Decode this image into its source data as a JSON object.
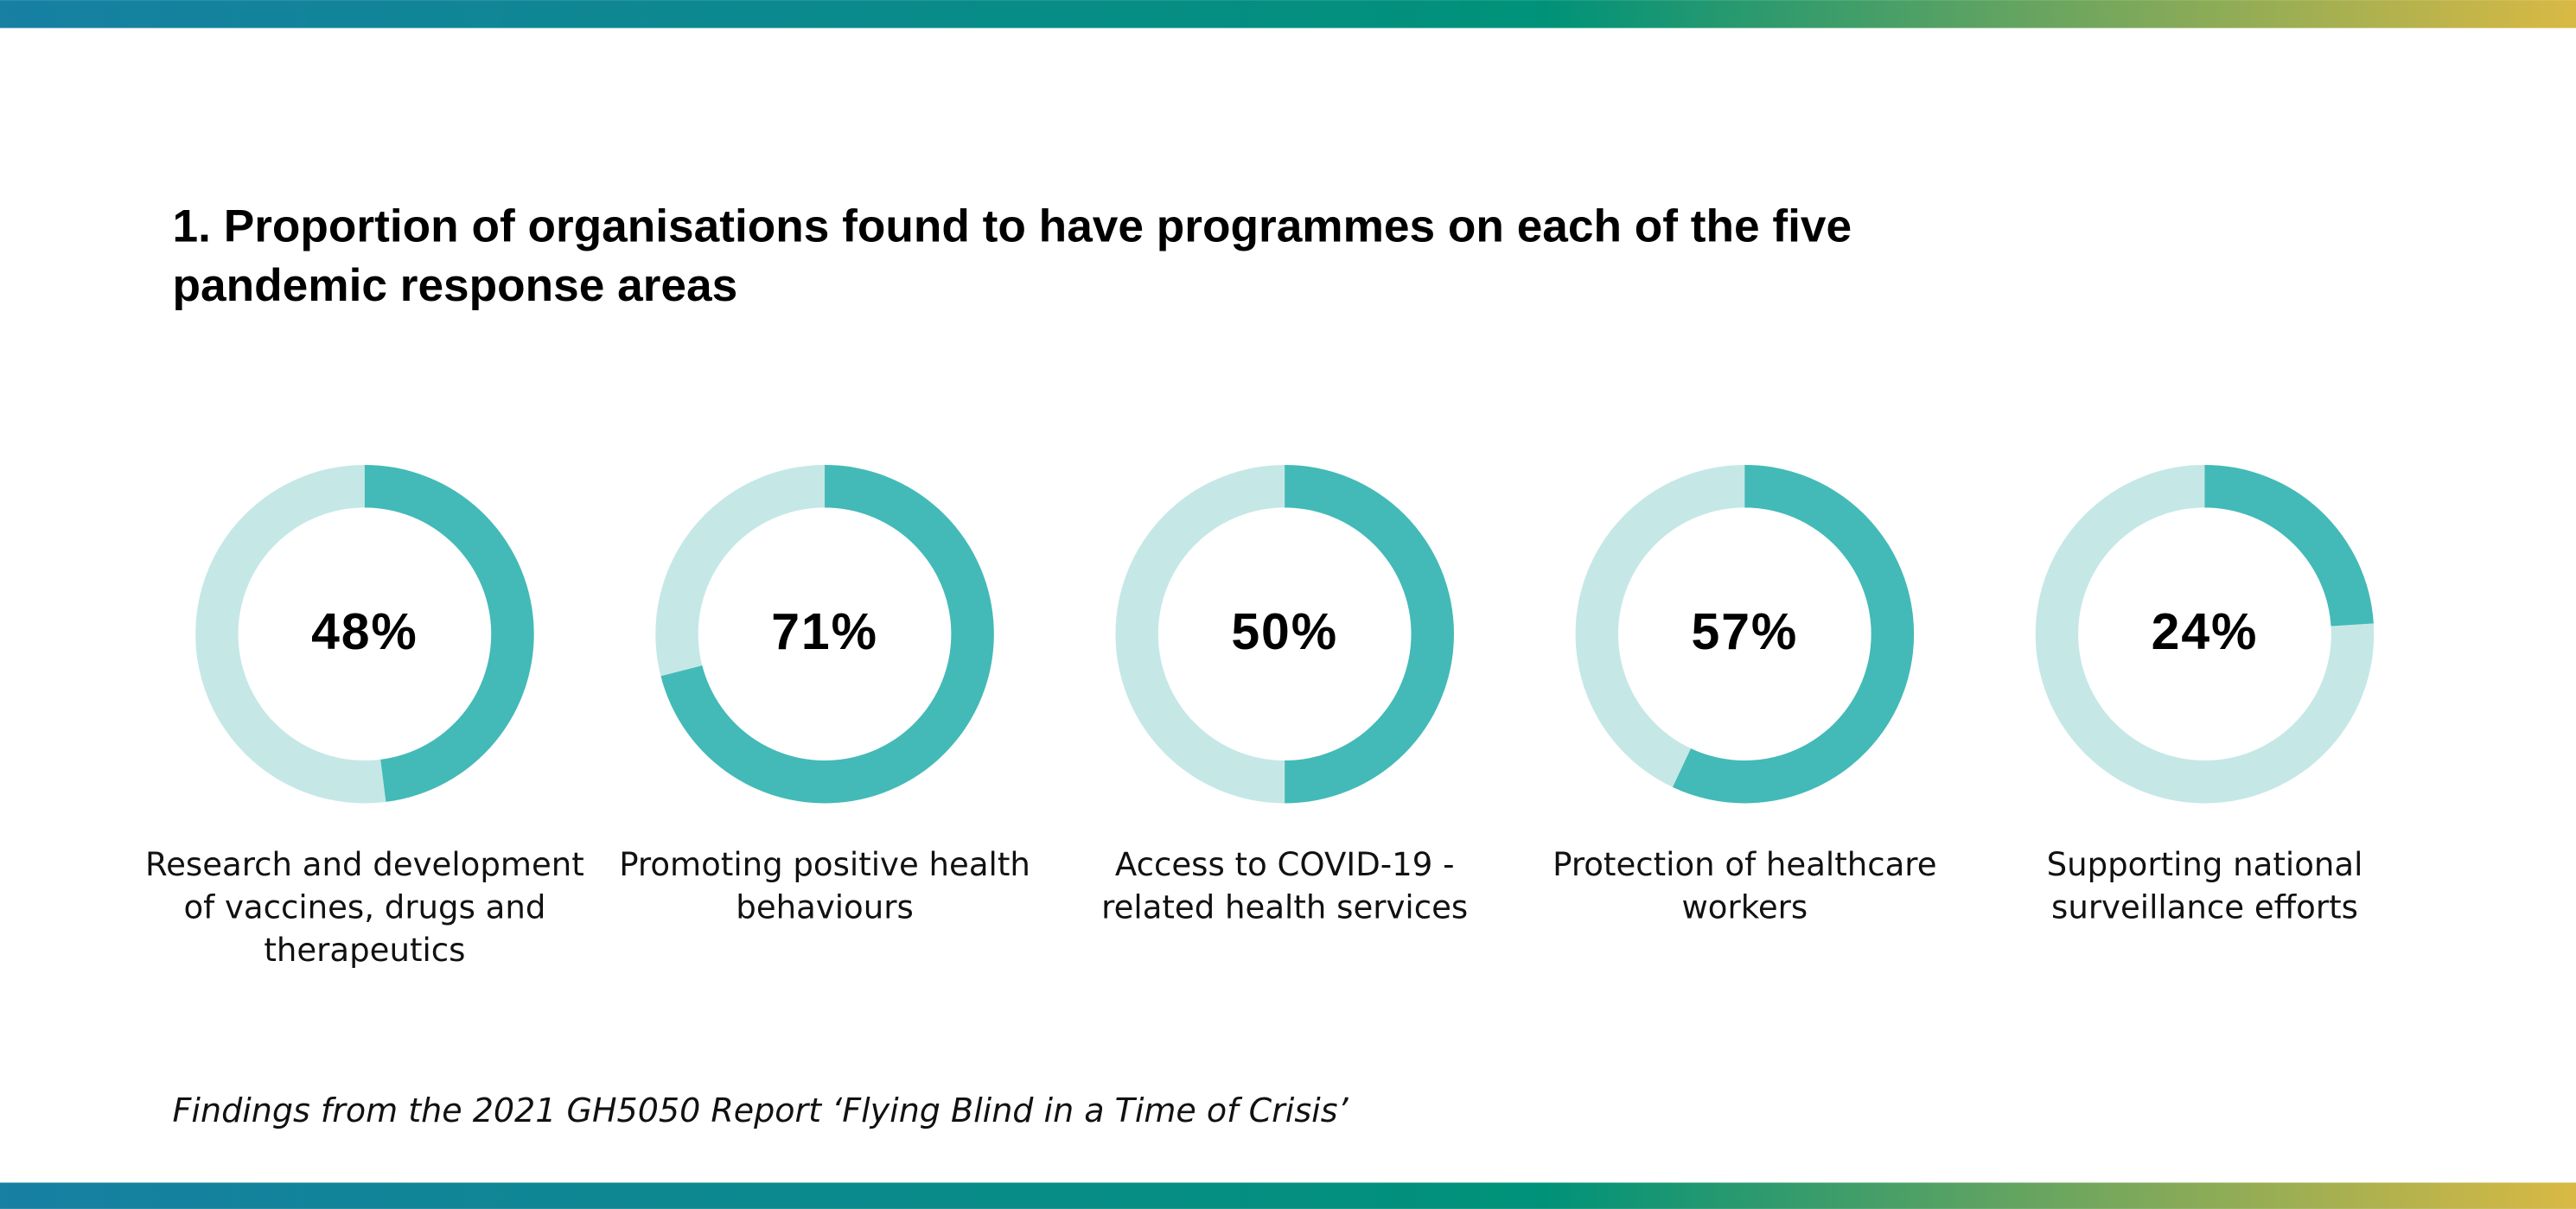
{
  "chart_data": {
    "type": "donut",
    "title": "1. Proportion of organisations found to have programmes on each of the five pandemic response areas",
    "categories": [
      "Research and development of vaccines, drugs and therapeutics",
      "Promoting positive health behaviours",
      "Access to COVID-19 -related health services",
      "Protection of healthcare workers",
      "Supporting national surveillance efforts"
    ],
    "values": [
      48,
      71,
      50,
      57,
      24
    ],
    "value_labels": [
      "48%",
      "71%",
      "50%",
      "57%",
      "24%"
    ],
    "color": "#43bab7",
    "track_color": "#c5e8e7",
    "footnote": "Findings from the 2021 GH5050 Report ‘Flying Blind in a Time of Crisis’"
  }
}
